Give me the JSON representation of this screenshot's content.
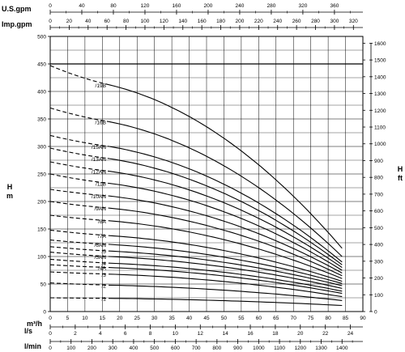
{
  "chart_data": {
    "type": "line",
    "title": "",
    "axes": {
      "main": {
        "xlabel": "m³/h",
        "xlim": [
          0,
          90
        ],
        "xticks": [
          0,
          5,
          10,
          15,
          20,
          25,
          30,
          35,
          40,
          45,
          50,
          55,
          60,
          65,
          70,
          75,
          80,
          85,
          90
        ],
        "ylabel_left": "H m",
        "ylabel_left_lines": [
          "H",
          "m"
        ],
        "ylim": [
          0,
          500
        ],
        "yticks": [
          0,
          50,
          100,
          150,
          200,
          250,
          300,
          350,
          400,
          450,
          500
        ],
        "ylabel_right": "H ft",
        "ylabel_right_lines": [
          "H",
          "ft"
        ],
        "yticks_right": [
          0,
          100,
          200,
          300,
          400,
          500,
          600,
          700,
          800,
          900,
          1000,
          1100,
          1200,
          1300,
          1400,
          1500,
          1600
        ]
      },
      "top1": {
        "label": "U.S.gpm",
        "max": 396,
        "ticks": [
          0,
          40,
          80,
          120,
          160,
          200,
          240,
          280,
          320,
          360
        ]
      },
      "top2": {
        "label": "Imp.gpm",
        "max": 330,
        "ticks": [
          0,
          20,
          40,
          60,
          80,
          100,
          120,
          140,
          160,
          180,
          200,
          220,
          240,
          260,
          280,
          300,
          320
        ]
      },
      "bot1": {
        "label": "l/s",
        "max": 25,
        "ticks": [
          0,
          2,
          4,
          6,
          8,
          10,
          12,
          14,
          16,
          18,
          20,
          22,
          24
        ]
      },
      "bot2": {
        "label": "l/min",
        "max": 1500,
        "ticks": [
          0,
          100,
          200,
          300,
          400,
          500,
          600,
          700,
          800,
          900,
          1000,
          1100,
          1200,
          1300,
          1400
        ]
      }
    },
    "grid": true,
    "reference_line": {
      "y": 450
    },
    "curve_shape": {
      "x_dash_start": 0,
      "x_solid_start": 17,
      "x_end": 84
    },
    "series": [
      {
        "name": "/1",
        "shutoff": 25,
        "start_solid": 24,
        "end": 11
      },
      {
        "name": "/2",
        "shutoff": 52,
        "start_solid": 48,
        "end": 20
      },
      {
        "name": "/3",
        "shutoff": 72,
        "start_solid": 68,
        "end": 27
      },
      {
        "name": "/4A",
        "shutoff": 85,
        "start_solid": 80,
        "end": 33
      },
      {
        "name": "/4",
        "shutoff": 95,
        "start_solid": 88,
        "end": 37
      },
      {
        "name": "/5AN",
        "shutoff": 108,
        "start_solid": 100,
        "end": 42
      },
      {
        "name": "/5",
        "shutoff": 118,
        "start_solid": 110,
        "end": 47
      },
      {
        "name": "/6AN",
        "shutoff": 130,
        "start_solid": 122,
        "end": 51
      },
      {
        "name": "/7A",
        "shutoff": 148,
        "start_solid": 138,
        "end": 55
      },
      {
        "name": "/8A",
        "shutoff": 175,
        "start_solid": 165,
        "end": 60
      },
      {
        "name": "/9AN",
        "shutoff": 200,
        "start_solid": 188,
        "end": 65
      },
      {
        "name": "/10AN",
        "shutoff": 222,
        "start_solid": 210,
        "end": 70
      },
      {
        "name": "/11B",
        "shutoff": 250,
        "start_solid": 233,
        "end": 75
      },
      {
        "name": "/12AN",
        "shutoff": 272,
        "start_solid": 255,
        "end": 80
      },
      {
        "name": "/13AN",
        "shutoff": 297,
        "start_solid": 278,
        "end": 85
      },
      {
        "name": "/15AN",
        "shutoff": 320,
        "start_solid": 300,
        "end": 90
      },
      {
        "name": "/16B",
        "shutoff": 370,
        "start_solid": 345,
        "end": 100
      },
      {
        "name": "/19B",
        "shutoff": 447,
        "start_solid": 412,
        "end": 115
      }
    ]
  }
}
